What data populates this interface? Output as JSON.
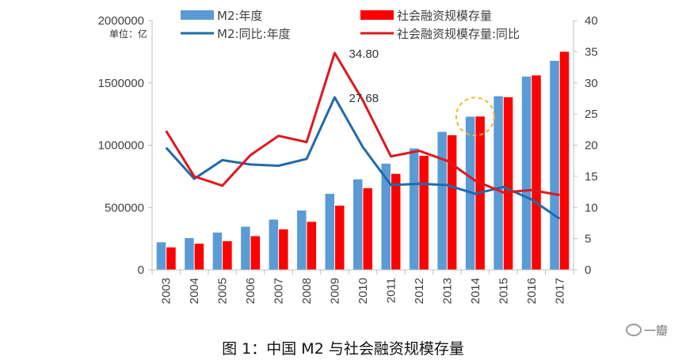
{
  "chart_data": {
    "type": "bar",
    "categories": [
      "2003",
      "2004",
      "2005",
      "2006",
      "2007",
      "2008",
      "2009",
      "2010",
      "2011",
      "2012",
      "2013",
      "2014",
      "2015",
      "2016",
      "2017"
    ],
    "series": [
      {
        "name": "M2:年度",
        "type": "bar",
        "axis": "left",
        "color": "#5b9bd5",
        "values": [
          221000,
          254000,
          299000,
          346000,
          403000,
          476000,
          610000,
          726000,
          852000,
          974000,
          1107000,
          1229000,
          1393000,
          1551000,
          1677000
        ]
      },
      {
        "name": "社会融资规模存量",
        "type": "bar",
        "axis": "left",
        "color": "#ff0000",
        "values": [
          180000,
          210000,
          230000,
          270000,
          325000,
          385000,
          515000,
          655000,
          770000,
          915000,
          1080000,
          1230000,
          1385000,
          1560000,
          1750000
        ]
      },
      {
        "name": "M2:同比:年度",
        "type": "line",
        "axis": "right",
        "color": "#1f6bab",
        "values": [
          19.6,
          14.6,
          17.6,
          16.9,
          16.7,
          17.8,
          27.68,
          19.7,
          13.6,
          13.8,
          13.6,
          12.2,
          13.3,
          11.3,
          8.2
        ]
      },
      {
        "name": "社会融资规模存量:同比",
        "type": "line",
        "axis": "right",
        "color": "#e0171f",
        "values": [
          22.3,
          15.0,
          13.5,
          18.4,
          21.5,
          20.5,
          34.8,
          27.2,
          18.2,
          19.1,
          17.5,
          14.3,
          12.4,
          12.8,
          12.0
        ]
      }
    ],
    "y_left": {
      "ylim": [
        0,
        2000000
      ],
      "ticks": [
        "0",
        "500000",
        "1000000",
        "1500000",
        "2000000"
      ],
      "unit": "单位：亿"
    },
    "y_right": {
      "ylim": [
        0,
        40
      ],
      "ticks": [
        "0",
        "5",
        "10",
        "15",
        "20",
        "25",
        "30",
        "35",
        "40"
      ]
    },
    "annotations": [
      {
        "text": "34.80",
        "series": "社会融资规模存量:同比",
        "category": "2009"
      },
      {
        "text": "27.68",
        "series": "M2:同比:年度",
        "category": "2009"
      }
    ],
    "highlight": {
      "category": "2014",
      "shape": "dashed-circle",
      "color": "#f5b530"
    },
    "legend_position": "top",
    "grid": false
  },
  "caption": "图 1：中国 M2 与社会融资规模存量",
  "watermark": "一瓣"
}
